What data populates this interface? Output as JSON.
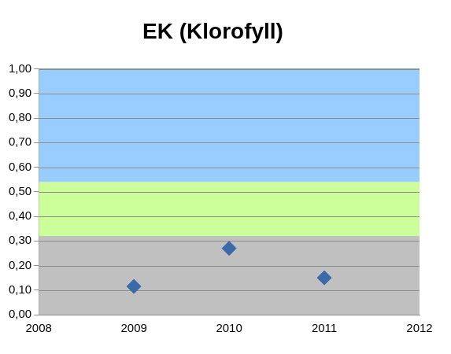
{
  "chart_data": {
    "type": "scatter",
    "title": "EK (Klorofyll)",
    "x": [
      2009,
      2010,
      2011
    ],
    "values": [
      0.115,
      0.27,
      0.15
    ],
    "color": "#3a6aa8",
    "marker": "diamond",
    "xlim": [
      2008,
      2012
    ],
    "xticks": [
      2008,
      2009,
      2010,
      2011,
      2012
    ],
    "ylim": [
      0,
      1
    ],
    "yticks": [
      {
        "value": 0,
        "label": "0,00"
      },
      {
        "value": 0.1,
        "label": "0,10"
      },
      {
        "value": 0.2,
        "label": "0,20"
      },
      {
        "value": 0.3,
        "label": "0,30"
      },
      {
        "value": 0.4,
        "label": "0,40"
      },
      {
        "value": 0.5,
        "label": "0,50"
      },
      {
        "value": 0.6,
        "label": "0,60"
      },
      {
        "value": 0.7,
        "label": "0,70"
      },
      {
        "value": 0.8,
        "label": "0,80"
      },
      {
        "value": 0.9,
        "label": "0,90"
      },
      {
        "value": 1,
        "label": "1,00"
      }
    ],
    "bands": [
      {
        "from": 0,
        "to": 0.32,
        "color": "#c0c0c0"
      },
      {
        "from": 0.32,
        "to": 0.54,
        "color": "#ccff99"
      },
      {
        "from": 0.54,
        "to": 1,
        "color": "#99ccff"
      }
    ],
    "grid": "y"
  }
}
